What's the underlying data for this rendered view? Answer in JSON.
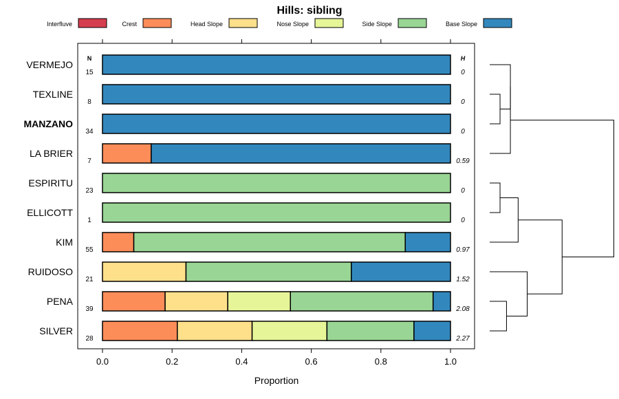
{
  "chart_data": {
    "type": "bar",
    "orientation": "horizontal",
    "stacked": true,
    "title": "Hills: sibling",
    "xlabel": "Proportion",
    "ylabel": "",
    "xlim": [
      0,
      1
    ],
    "x_ticks": [
      "0.0",
      "0.2",
      "0.4",
      "0.6",
      "0.8",
      "1.0"
    ],
    "x_tick_values": [
      0,
      0.2,
      0.4,
      0.6,
      0.8,
      1.0
    ],
    "n_header": "N",
    "h_header": "H",
    "legend": {
      "placement": "top",
      "entries": [
        {
          "name": "Interfluve",
          "color": "#D53E4F"
        },
        {
          "name": "Crest",
          "color": "#FC8D59"
        },
        {
          "name": "Head Slope",
          "color": "#FEE08B"
        },
        {
          "name": "Nose Slope",
          "color": "#E6F598"
        },
        {
          "name": "Side Slope",
          "color": "#99D594"
        },
        {
          "name": "Base Slope",
          "color": "#3288BD"
        }
      ]
    },
    "categories": [
      "VERMEJO",
      "TEXLINE",
      "MANZANO",
      "LA BRIER",
      "ESPIRITU",
      "ELLICOTT",
      "KIM",
      "RUIDOSO",
      "PENA",
      "SILVER"
    ],
    "highlight": "MANZANO",
    "n": [
      "15",
      "8",
      "34",
      "7",
      "23",
      "1",
      "55",
      "21",
      "39",
      "28"
    ],
    "h": [
      "0",
      "0",
      "0",
      "0.59",
      "0",
      "0",
      "0.97",
      "1.52",
      "2.08",
      "2.27"
    ],
    "series": [
      {
        "name": "Interfluve",
        "values": [
          0,
          0,
          0,
          0,
          0,
          0,
          0,
          0,
          0,
          0
        ]
      },
      {
        "name": "Crest",
        "values": [
          0,
          0,
          0,
          0.14,
          0,
          0,
          0.09,
          0,
          0.18,
          0.215
        ]
      },
      {
        "name": "Head Slope",
        "values": [
          0,
          0,
          0,
          0,
          0,
          0,
          0,
          0.24,
          0.18,
          0.215
        ]
      },
      {
        "name": "Nose Slope",
        "values": [
          0,
          0,
          0,
          0,
          0,
          0,
          0,
          0,
          0.18,
          0.215
        ]
      },
      {
        "name": "Side Slope",
        "values": [
          0,
          0,
          0,
          0,
          1,
          1,
          0.78,
          0.475,
          0.41,
          0.25
        ]
      },
      {
        "name": "Base Slope",
        "values": [
          1,
          1,
          1,
          0.86,
          0,
          0,
          0.13,
          0.285,
          0.05,
          0.105
        ]
      }
    ],
    "dendrogram": {
      "type": "hierarchical-clustering",
      "leaves": [
        "VERMEJO",
        "TEXLINE",
        "MANZANO",
        "LA BRIER",
        "ESPIRITU",
        "ELLICOTT",
        "KIM",
        "RUIDOSO",
        "PENA",
        "SILVER"
      ],
      "merges": [
        {
          "left": "TEXLINE",
          "right": "MANZANO",
          "height": 0.08
        },
        {
          "left": "VERMEJO",
          "right": "TEXLINE+MANZANO",
          "height": 0.16
        },
        {
          "left": "VERMEJO+TEXLINE+MANZANO",
          "right": "LA BRIER",
          "height": 0.16
        },
        {
          "left": "ESPIRITU",
          "right": "ELLICOTT",
          "height": 0.08
        },
        {
          "left": "ESPIRITU+ELLICOTT",
          "right": "KIM",
          "height": 0.22
        },
        {
          "left": "PENA",
          "right": "SILVER",
          "height": 0.13
        },
        {
          "left": "RUIDOSO",
          "right": "PENA+SILVER",
          "height": 0.29
        },
        {
          "left": "ESPIRITU+ELLICOTT+KIM",
          "right": "RUIDOSO+PENA+SILVER",
          "height": 0.56
        },
        {
          "left": "VERMEJO+TEXLINE+MANZANO+LA BRIER",
          "right": "rest",
          "height": 0.96
        }
      ]
    }
  }
}
